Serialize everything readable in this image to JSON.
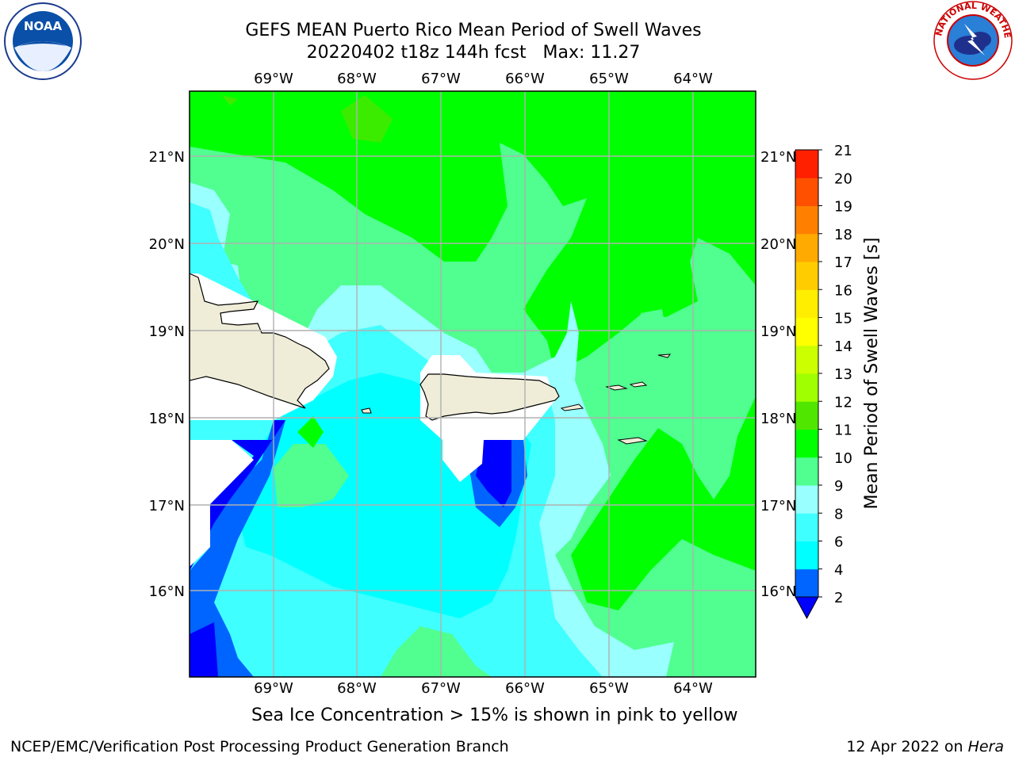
{
  "title": {
    "line1": "GEFS MEAN Puerto Rico Mean Period of Swell Waves",
    "line2": "20220402 t18z 144h fcst   Max: 11.27"
  },
  "footer": {
    "left": "NCEP/EMC/Verification Post Processing Product Generation Branch",
    "right_date": "12 Apr 2022 on ",
    "right_host": "Hera"
  },
  "ice_note": "Sea Ice Concentration > 15% is shown in pink to yellow",
  "map": {
    "lon_ticks": [
      "69°W",
      "68°W",
      "67°W",
      "66°W",
      "65°W",
      "64°W"
    ],
    "lat_ticks": [
      "21°N",
      "20°N",
      "19°N",
      "18°N",
      "17°N",
      "16°N"
    ]
  },
  "colorbar": {
    "label": "Mean Period of Swell Waves [s]",
    "ticks": [
      "2",
      "4",
      "6",
      "8",
      "9",
      "10",
      "11",
      "12",
      "13",
      "14",
      "15",
      "16",
      "17",
      "18",
      "19",
      "20",
      "21"
    ],
    "colors": [
      "#0000ff",
      "#0064ff",
      "#00ffff",
      "#40ffff",
      "#99ffff",
      "#50ff90",
      "#00ff00",
      "#50e600",
      "#a0ff00",
      "#ccff00",
      "#ffff00",
      "#ffee00",
      "#ffcc00",
      "#ffaa00",
      "#ff8000",
      "#ff5000",
      "#ff2000",
      "#ff0000"
    ]
  },
  "logos": {
    "noaa_text": "NOAA",
    "nws_text": "NATIONAL WEATHER SERVICE"
  }
}
